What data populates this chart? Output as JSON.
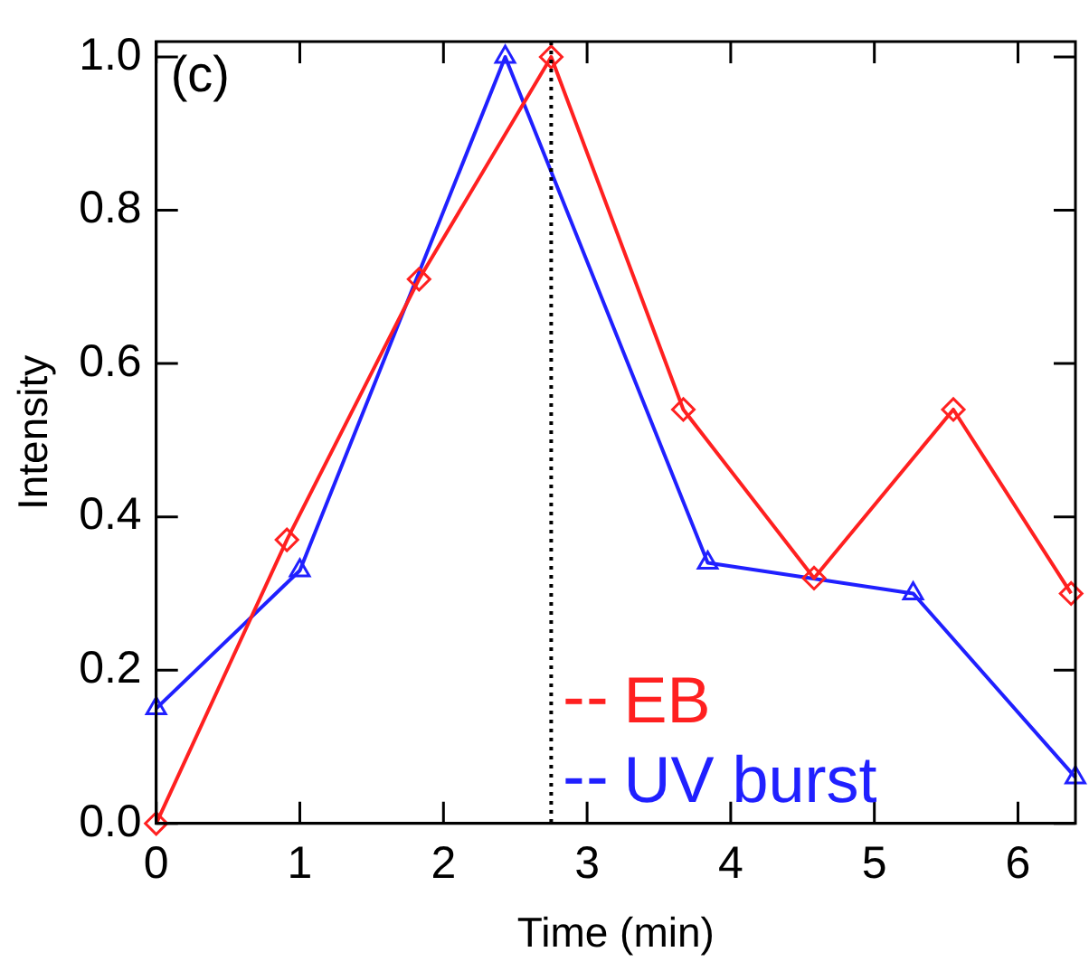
{
  "chart_data": {
    "type": "line",
    "xlabel": "Time (min)",
    "ylabel": "Intensity",
    "annotations": [
      "(c)"
    ],
    "xlim": [
      0,
      6.4
    ],
    "xticks": [
      0,
      1,
      2,
      3,
      4,
      5,
      6
    ],
    "ylim": [
      0,
      1.02
    ],
    "yticks": [
      {
        "value": 0,
        "label": "0.0"
      },
      {
        "value": 0.2,
        "label": "0.2"
      },
      {
        "value": 0.4,
        "label": "0.4"
      },
      {
        "value": 0.6,
        "label": "0.6"
      },
      {
        "value": 0.8,
        "label": "0.8"
      },
      {
        "value": 1,
        "label": "1.0"
      }
    ],
    "series": [
      {
        "name": "EB",
        "color": "#ff2020",
        "marker": "diamond",
        "x": [
          0,
          0.91,
          1.83,
          2.75,
          3.67,
          4.58,
          5.55,
          6.37
        ],
        "values": [
          0,
          0.37,
          0.71,
          1.0,
          0.54,
          0.32,
          0.54,
          0.3
        ]
      },
      {
        "name": "UV burst",
        "color": "#2020ff",
        "marker": "triangle",
        "x": [
          0,
          1.0,
          2.43,
          3.84,
          5.27,
          6.4
        ],
        "values": [
          0.15,
          0.33,
          1.0,
          0.34,
          0.3,
          0.06
        ]
      }
    ],
    "ref_lines": [
      {
        "axis": "x",
        "value": 2.75,
        "color": "#000000",
        "line_style": "dotted"
      }
    ],
    "legend": "bottom right",
    "grid": false
  }
}
